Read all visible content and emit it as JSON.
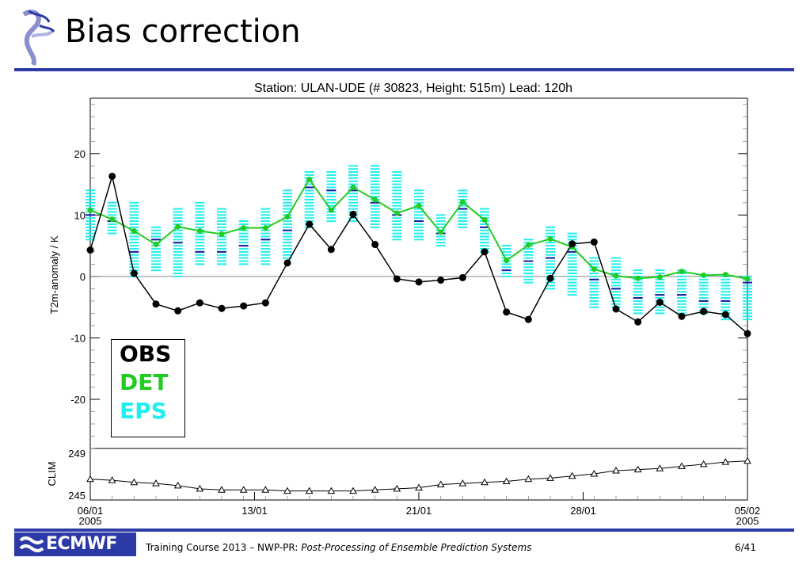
{
  "slide": {
    "title": "Bias correction",
    "footer_prefix": "Training Course 2013 – NWP-PR: ",
    "footer_italic": "Post-Processing of Ensemble Prediction Systems",
    "page": "6/41",
    "logo_text": "ECMWF"
  },
  "colors": {
    "obs": "#000000",
    "det": "#22cc22",
    "eps": "#22eeee",
    "eps_median": "#1a1aa0",
    "rule": "#2b3aa6"
  },
  "legend": {
    "obs": "OBS",
    "det": "DET",
    "eps": "EPS"
  },
  "chart_data": [
    {
      "type": "line",
      "title": "Station:  ULAN-UDE  (# 30823, Height: 515m) Lead: 120h",
      "ylabel": "T2m-anomaly / K",
      "ylim": [
        -28,
        29
      ],
      "yticks": [
        20,
        10,
        0,
        -10,
        -20
      ],
      "xlim": [
        0,
        30
      ],
      "xticks": [
        {
          "x": 0,
          "label": "06/01",
          "sub": "2005"
        },
        {
          "x": 7.5,
          "label": "13/01",
          "sub": ""
        },
        {
          "x": 15,
          "label": "21/01",
          "sub": ""
        },
        {
          "x": 22.5,
          "label": "28/01",
          "sub": ""
        },
        {
          "x": 30,
          "label": "05/02",
          "sub": "2005"
        }
      ],
      "x": [
        0,
        1,
        2,
        3,
        4,
        5,
        6,
        7,
        8,
        9,
        10,
        11,
        12,
        13,
        14,
        15,
        16,
        17,
        18,
        19,
        20,
        21,
        22,
        23,
        24,
        25,
        26,
        27,
        28,
        29,
        30
      ],
      "series": [
        {
          "name": "OBS",
          "values": [
            4.3,
            16.3,
            0.5,
            -4.5,
            -5.6,
            -4.3,
            -5.2,
            -4.8,
            -4.3,
            2.2,
            8.5,
            4.4,
            10.1,
            5.2,
            -0.4,
            -0.9,
            -0.6,
            -0.2,
            4.0,
            -5.8,
            -7.0,
            -0.3,
            5.3,
            5.6,
            -5.3,
            -7.4,
            -4.2,
            -6.5,
            -5.7,
            -6.2,
            -9.3
          ]
        },
        {
          "name": "DET",
          "values": [
            10.8,
            9.3,
            7.4,
            5.2,
            8.1,
            7.4,
            6.9,
            7.9,
            7.9,
            9.7,
            15.8,
            10.8,
            14.5,
            12.5,
            10.3,
            11.5,
            7.2,
            12.1,
            9.2,
            2.6,
            5.1,
            6.1,
            4.8,
            1.2,
            0.1,
            -0.3,
            -0.1,
            0.8,
            0.2,
            0.3,
            -0.4
          ]
        },
        {
          "name": "EPS",
          "min": [
            6,
            7,
            0,
            1,
            0,
            2,
            2,
            2,
            2,
            3,
            8,
            9,
            9,
            8,
            6,
            6,
            5,
            8,
            4,
            0,
            -1,
            -2,
            -3,
            -5,
            -5,
            -6,
            -6,
            -6,
            -6,
            -7,
            -7
          ],
          "max": [
            14,
            12,
            12,
            8,
            11,
            12,
            11,
            9,
            11,
            14,
            17,
            17,
            18,
            18,
            17,
            14,
            10,
            14,
            11,
            5,
            6,
            8,
            7,
            3,
            3,
            1,
            1,
            1,
            0,
            0,
            0
          ],
          "median": [
            10,
            9,
            4,
            6,
            5.5,
            4,
            4,
            5,
            6,
            7.5,
            14.5,
            14,
            14,
            12,
            10,
            9,
            7,
            11,
            8,
            1,
            2.5,
            3,
            4,
            -0.5,
            -2,
            -3.5,
            -3,
            -3,
            -4,
            -4,
            -1
          ]
        }
      ]
    },
    {
      "type": "line",
      "ylabel": "CLIM",
      "ylim": [
        245,
        249
      ],
      "yticks": [
        249,
        245
      ],
      "series": [
        {
          "name": "CLIM",
          "values": [
            246.5,
            246.4,
            246.2,
            246.1,
            245.9,
            245.6,
            245.5,
            245.5,
            245.5,
            245.4,
            245.4,
            245.4,
            245.4,
            245.5,
            245.6,
            245.7,
            246.0,
            246.1,
            246.2,
            246.3,
            246.5,
            246.6,
            246.8,
            247.0,
            247.3,
            247.4,
            247.5,
            247.7,
            247.9,
            248.1,
            248.2
          ]
        }
      ]
    }
  ]
}
